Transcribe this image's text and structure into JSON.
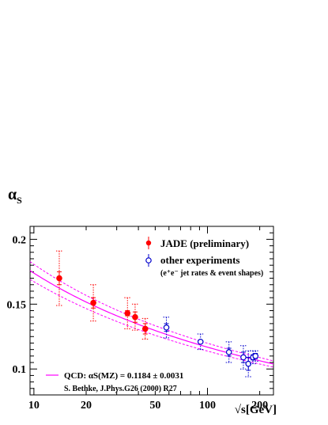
{
  "chart_data": {
    "type": "scatter",
    "title": "",
    "ylabel": {
      "symbol": "α",
      "sub": "S"
    },
    "xlabel": "√s[GeV]",
    "x_scale": "log",
    "xlim": [
      9.5,
      240
    ],
    "ylim": [
      0.08,
      0.21
    ],
    "x_tick_labels": [
      {
        "value": 10,
        "label": "10"
      },
      {
        "value": 20,
        "label": "20"
      },
      {
        "value": 50,
        "label": "50"
      },
      {
        "value": 100,
        "label": "100"
      },
      {
        "value": 200,
        "label": "200"
      }
    ],
    "y_tick_labels": [
      {
        "value": 0.1,
        "label": "0.1"
      },
      {
        "value": 0.15,
        "label": "0.15"
      },
      {
        "value": 0.2,
        "label": "0.2"
      }
    ],
    "grid": false,
    "series": [
      {
        "name": "JADE (preliminary)",
        "marker": "filled-circle",
        "color": "#ff0000",
        "points": [
          {
            "x": 14,
            "y": 0.17,
            "stat": 0.005,
            "tot": 0.021
          },
          {
            "x": 22,
            "y": 0.151,
            "stat": 0.004,
            "tot": 0.014
          },
          {
            "x": 34.6,
            "y": 0.143,
            "stat": 0.002,
            "tot": 0.012
          },
          {
            "x": 38.3,
            "y": 0.14,
            "stat": 0.004,
            "tot": 0.01
          },
          {
            "x": 43.8,
            "y": 0.131,
            "stat": 0.004,
            "tot": 0.008
          }
        ]
      },
      {
        "name": "other experiments",
        "marker": "open-circle",
        "color": "#0000cc",
        "points": [
          {
            "x": 58,
            "y": 0.132,
            "stat": 0.003,
            "tot": 0.008
          },
          {
            "x": 91.2,
            "y": 0.121,
            "stat": 0.001,
            "tot": 0.006
          },
          {
            "x": 133,
            "y": 0.113,
            "stat": 0.003,
            "tot": 0.008
          },
          {
            "x": 161,
            "y": 0.109,
            "stat": 0.004,
            "tot": 0.009
          },
          {
            "x": 172,
            "y": 0.104,
            "stat": 0.005,
            "tot": 0.01
          },
          {
            "x": 183,
            "y": 0.109,
            "stat": 0.002,
            "tot": 0.005
          },
          {
            "x": 189,
            "y": 0.11,
            "stat": 0.002,
            "tot": 0.004
          }
        ]
      }
    ],
    "qcd_curve": {
      "color": "#ff00ff",
      "alpha_mz": 0.1184,
      "error": 0.0031,
      "mz": 91.19
    },
    "legend": {
      "placement": "top-right",
      "jade": "JADE (preliminary)",
      "other": "other experiments",
      "other_sub": "(e⁺e⁻ jet rates & event shapes)"
    },
    "annotation": {
      "qcd_label": "QCD: αS(MZ) = 0.1184 ± 0.0031",
      "reference": "S. Bethke, J.Phys.G26 (2000) R27"
    }
  }
}
